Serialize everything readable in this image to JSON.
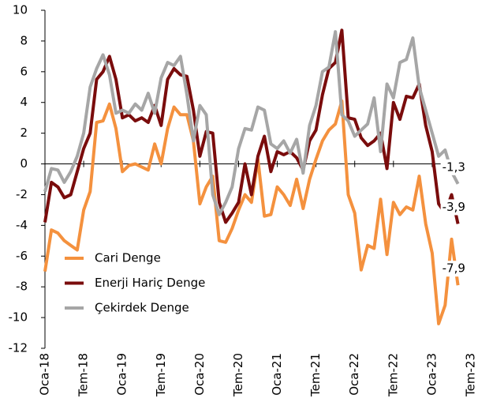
{
  "chart_data": {
    "type": "line",
    "categories": [
      "Oca-18",
      null,
      null,
      null,
      null,
      null,
      "Tem-18",
      null,
      null,
      null,
      null,
      null,
      "Oca-19",
      null,
      null,
      null,
      null,
      null,
      "Tem-19",
      null,
      null,
      null,
      null,
      null,
      "Oca-20",
      null,
      null,
      null,
      null,
      null,
      "Tem-20",
      null,
      null,
      null,
      null,
      null,
      "Oca-21",
      null,
      null,
      null,
      null,
      null,
      "Tem-21",
      null,
      null,
      null,
      null,
      null,
      "Oca-22",
      null,
      null,
      null,
      null,
      null,
      "Tem-22",
      null,
      null,
      null,
      null,
      null,
      "Oca-23",
      null,
      null,
      null,
      null,
      null,
      "Tem-23"
    ],
    "series": [
      {
        "name": "Cari Denge",
        "color": "#f4913e",
        "values": [
          -7.0,
          -4.3,
          -4.5,
          -5.0,
          -5.3,
          -5.6,
          -3.0,
          -1.8,
          2.7,
          2.8,
          3.9,
          2.3,
          -0.5,
          -0.1,
          0.0,
          -0.2,
          -0.4,
          1.3,
          0.0,
          2.3,
          3.7,
          3.2,
          3.2,
          1.5,
          -2.6,
          -1.5,
          -0.8,
          -5.0,
          -5.1,
          -4.2,
          -3.0,
          -2.0,
          -2.5,
          0.3,
          -3.4,
          -3.3,
          -1.5,
          -2.0,
          -2.7,
          -1.0,
          -2.9,
          -1.0,
          0.3,
          1.5,
          2.2,
          2.6,
          4.1,
          -2.0,
          -3.2,
          -6.9,
          -5.3,
          -5.5,
          -2.3,
          -5.9,
          -2.5,
          -3.3,
          -2.8,
          -3.0,
          -0.8,
          -3.9,
          -5.8,
          -10.4,
          -9.2,
          -4.9,
          -7.9,
          null,
          null
        ],
        "value_labels": [
          null,
          null,
          null,
          null,
          null,
          null,
          null,
          null,
          null,
          null,
          null,
          null,
          null,
          null,
          null,
          null,
          null,
          null,
          null,
          null,
          null,
          null,
          null,
          null,
          null,
          null,
          null,
          null,
          null,
          null,
          null,
          null,
          null,
          null,
          null,
          null,
          null,
          null,
          null,
          null,
          null,
          null,
          null,
          null,
          null,
          null,
          null,
          null,
          null,
          null,
          null,
          null,
          null,
          null,
          null,
          null,
          null,
          null,
          null,
          null,
          null,
          null,
          null,
          null,
          "-7,9",
          null,
          null
        ]
      },
      {
        "name": "Enerji Hariç Denge",
        "color": "#7a0c0c",
        "values": [
          -3.8,
          -1.2,
          -1.5,
          -2.2,
          -2.0,
          -0.5,
          1.0,
          2.0,
          5.5,
          6.0,
          7.0,
          5.5,
          3.0,
          3.2,
          2.8,
          3.0,
          2.7,
          3.8,
          2.5,
          5.5,
          6.2,
          5.8,
          5.7,
          3.5,
          0.5,
          2.1,
          2.0,
          -2.5,
          -3.8,
          -3.2,
          -2.5,
          0.0,
          -2.0,
          0.5,
          1.8,
          -0.5,
          0.8,
          0.6,
          0.8,
          0.4,
          -0.4,
          1.5,
          2.2,
          4.5,
          6.2,
          6.6,
          8.7,
          3.0,
          2.9,
          1.7,
          1.2,
          1.5,
          2.0,
          -0.3,
          4.0,
          2.9,
          4.4,
          4.3,
          5.2,
          2.5,
          0.8,
          -2.6,
          -3.2,
          -2.0,
          -3.9,
          null,
          null
        ],
        "value_labels": [
          null,
          null,
          null,
          null,
          null,
          null,
          null,
          null,
          null,
          null,
          null,
          null,
          null,
          null,
          null,
          null,
          null,
          null,
          null,
          null,
          null,
          null,
          null,
          null,
          null,
          null,
          null,
          null,
          null,
          null,
          null,
          null,
          null,
          null,
          null,
          null,
          null,
          null,
          null,
          null,
          null,
          null,
          null,
          null,
          null,
          null,
          null,
          null,
          null,
          null,
          null,
          null,
          null,
          null,
          null,
          null,
          null,
          null,
          null,
          null,
          null,
          null,
          null,
          null,
          "-3,9",
          null,
          null
        ]
      },
      {
        "name": "Çekirdek Denge",
        "color": "#a6a6a6",
        "values": [
          -1.8,
          -0.3,
          -0.4,
          -1.2,
          -0.5,
          0.5,
          2.0,
          5.0,
          6.2,
          7.1,
          5.8,
          3.3,
          3.5,
          3.3,
          3.9,
          3.5,
          4.6,
          3.3,
          5.6,
          6.6,
          6.4,
          7.0,
          4.5,
          1.5,
          3.8,
          3.2,
          -2.0,
          -3.3,
          -2.5,
          -1.5,
          1.0,
          2.3,
          2.2,
          3.7,
          3.5,
          1.3,
          1.0,
          1.5,
          0.7,
          1.6,
          -0.6,
          2.5,
          3.8,
          6.0,
          6.3,
          8.6,
          3.2,
          2.8,
          1.8,
          2.2,
          2.6,
          4.3,
          0.8,
          5.2,
          4.3,
          6.6,
          6.8,
          8.2,
          5.0,
          3.5,
          2.0,
          0.5,
          0.9,
          -0.5,
          -1.3,
          null,
          null
        ],
        "value_labels": [
          null,
          null,
          null,
          null,
          null,
          null,
          null,
          null,
          null,
          null,
          null,
          null,
          null,
          null,
          null,
          null,
          null,
          null,
          null,
          null,
          null,
          null,
          null,
          null,
          null,
          null,
          null,
          null,
          null,
          null,
          null,
          null,
          null,
          null,
          null,
          null,
          null,
          null,
          null,
          null,
          null,
          null,
          null,
          null,
          null,
          null,
          null,
          null,
          null,
          null,
          null,
          null,
          null,
          null,
          null,
          null,
          null,
          null,
          null,
          null,
          null,
          null,
          null,
          null,
          "-1,3",
          null,
          null
        ]
      }
    ],
    "ylim": [
      -12,
      10
    ],
    "yticks": [
      -12,
      -10,
      -8,
      -6,
      -4,
      -2,
      0,
      2,
      4,
      6,
      8,
      10
    ],
    "legend": "lower left"
  }
}
